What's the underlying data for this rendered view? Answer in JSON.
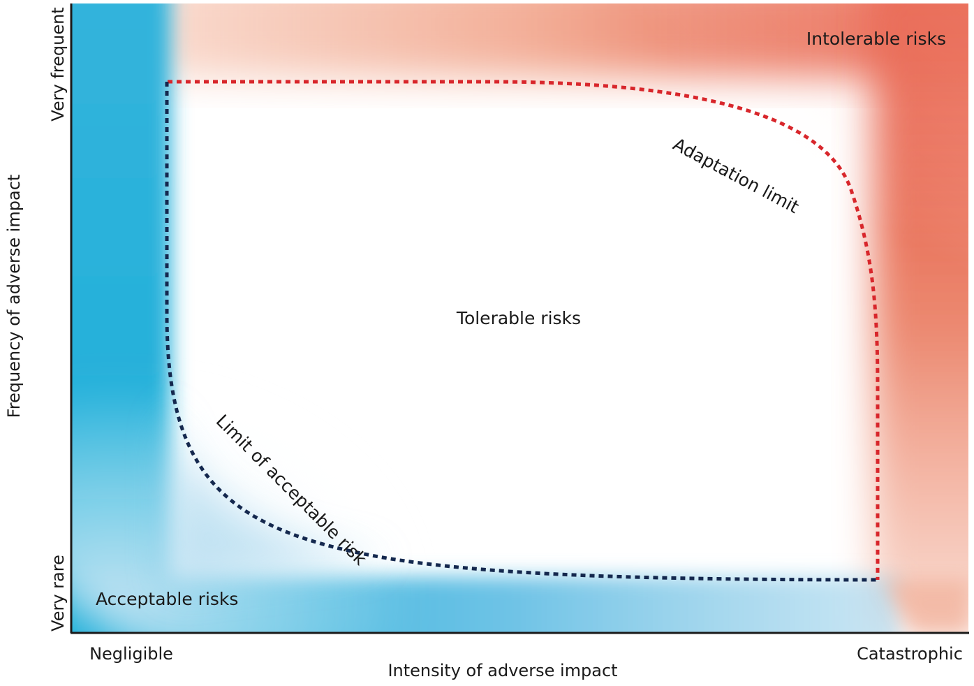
{
  "regions": {
    "intolerable": "Intolerable risks",
    "tolerable": "Tolerable risks",
    "acceptable": "Acceptable risks"
  },
  "boundaries": {
    "adaptation_limit": "Adaptation limit",
    "acceptable_limit": "Limit of acceptable risk"
  },
  "axes": {
    "x_label": "Intensity of adverse impact",
    "y_label": "Frequency of adverse impact",
    "x_low": "Negligible",
    "x_high": "Catastrophic",
    "y_low": "Very rare",
    "y_high": "Very frequent"
  },
  "colors": {
    "intolerable": "#e4432d",
    "acceptable": "#19aed8",
    "adaptation_line": "#d8262b",
    "acceptable_line": "#14284e",
    "tolerable_text": "#1d3f6e",
    "acceptable_text": "#ffffff",
    "intolerable_text": "#ffffff"
  }
}
